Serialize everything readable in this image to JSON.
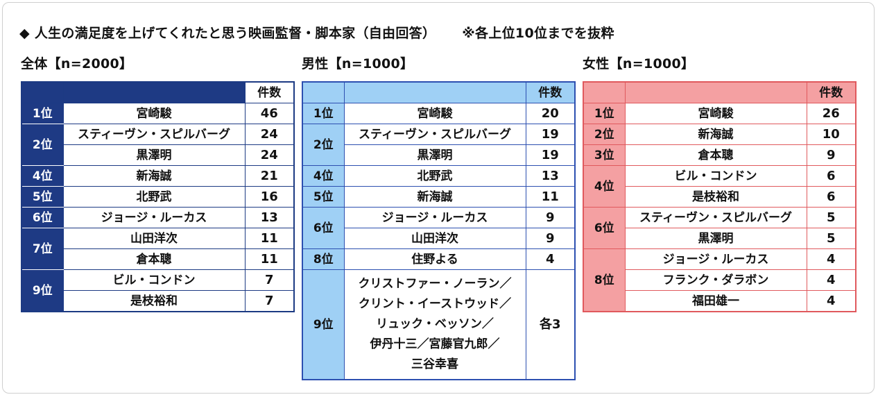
{
  "title": {
    "main": "◆ 人生の満足度を上げてくれたと思う映画監督・脚本家（自由回答）",
    "note": "※各上位10位までを抜粋"
  },
  "count_header": "件数",
  "tables": {
    "all": {
      "label": "全体【n=2000】",
      "groups": [
        {
          "rank": "1位",
          "rows": [
            {
              "name": "宮崎駿",
              "count": "46"
            }
          ]
        },
        {
          "rank": "2位",
          "rows": [
            {
              "name": "スティーヴン・スピルバーグ",
              "count": "24"
            },
            {
              "name": "黒澤明",
              "count": "24"
            }
          ]
        },
        {
          "rank": "4位",
          "rows": [
            {
              "name": "新海誠",
              "count": "21"
            }
          ]
        },
        {
          "rank": "5位",
          "rows": [
            {
              "name": "北野武",
              "count": "16"
            }
          ]
        },
        {
          "rank": "6位",
          "rows": [
            {
              "name": "ジョージ・ルーカス",
              "count": "13"
            }
          ]
        },
        {
          "rank": "7位",
          "rows": [
            {
              "name": "山田洋次",
              "count": "11"
            },
            {
              "name": "倉本聰",
              "count": "11"
            }
          ]
        },
        {
          "rank": "9位",
          "rows": [
            {
              "name": "ビル・コンドン",
              "count": "7"
            },
            {
              "name": "是枝裕和",
              "count": "7"
            }
          ]
        }
      ]
    },
    "male": {
      "label": "男性【n=1000】",
      "groups": [
        {
          "rank": "1位",
          "rows": [
            {
              "name": "宮崎駿",
              "count": "20"
            }
          ]
        },
        {
          "rank": "2位",
          "rows": [
            {
              "name": "スティーヴン・スピルバーグ",
              "count": "19"
            },
            {
              "name": "黒澤明",
              "count": "19"
            }
          ]
        },
        {
          "rank": "4位",
          "rows": [
            {
              "name": "北野武",
              "count": "13"
            }
          ]
        },
        {
          "rank": "5位",
          "rows": [
            {
              "name": "新海誠",
              "count": "11"
            }
          ]
        },
        {
          "rank": "6位",
          "rows": [
            {
              "name": "ジョージ・ルーカス",
              "count": "9"
            },
            {
              "name": "山田洋次",
              "count": "9"
            }
          ]
        },
        {
          "rank": "8位",
          "rows": [
            {
              "name": "住野よる",
              "count": "4"
            }
          ]
        },
        {
          "rank": "9位",
          "rows": [
            {
              "name": "クリストファー・ノーラン／\nクリント・イーストウッド／\nリュック・ベッソン／\n伊丹十三／宮藤官九郎／\n三谷幸喜",
              "count": "各3",
              "multi": true
            }
          ]
        }
      ]
    },
    "female": {
      "label": "女性【n=1000】",
      "groups": [
        {
          "rank": "1位",
          "rows": [
            {
              "name": "宮崎駿",
              "count": "26"
            }
          ]
        },
        {
          "rank": "2位",
          "rows": [
            {
              "name": "新海誠",
              "count": "10"
            }
          ]
        },
        {
          "rank": "3位",
          "rows": [
            {
              "name": "倉本聰",
              "count": "9"
            }
          ]
        },
        {
          "rank": "4位",
          "rows": [
            {
              "name": "ビル・コンドン",
              "count": "6"
            },
            {
              "name": "是枝裕和",
              "count": "6"
            }
          ]
        },
        {
          "rank": "6位",
          "rows": [
            {
              "name": "スティーヴン・スピルバーグ",
              "count": "5"
            },
            {
              "name": "黒澤明",
              "count": "5"
            }
          ]
        },
        {
          "rank": "8位",
          "rows": [
            {
              "name": "ジョージ・ルーカス",
              "count": "4"
            },
            {
              "name": "フランク・ダラボン",
              "count": "4"
            },
            {
              "name": "福田雄一",
              "count": "4"
            }
          ]
        }
      ]
    }
  },
  "colors": {
    "all_accent": "#1e3a84",
    "male_accent": "#9fd0f5",
    "male_border": "#2c4fb0",
    "female_accent": "#f4a0a2",
    "female_border": "#e0595d"
  }
}
